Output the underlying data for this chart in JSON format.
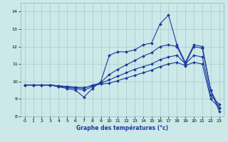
{
  "xlabel": "Graphe des températures (°c)",
  "xlim": [
    -0.5,
    23.5
  ],
  "ylim": [
    8.0,
    14.5
  ],
  "yticks": [
    8,
    9,
    10,
    11,
    12,
    13,
    14
  ],
  "xticks": [
    0,
    1,
    2,
    3,
    4,
    5,
    6,
    7,
    8,
    9,
    10,
    11,
    12,
    13,
    14,
    15,
    16,
    17,
    18,
    19,
    20,
    21,
    22,
    23
  ],
  "bg_color": "#cce8e8",
  "line_color": "#1a3a9c",
  "grid_color": "#aacaca",
  "lines": [
    {
      "x": [
        0,
        1,
        2,
        3,
        4,
        5,
        6,
        7,
        8,
        9,
        10,
        11,
        12,
        13,
        14,
        15,
        16,
        17,
        18,
        19,
        20,
        21,
        22,
        23
      ],
      "y": [
        9.8,
        9.8,
        9.8,
        9.8,
        9.7,
        9.6,
        9.5,
        9.1,
        9.6,
        10.0,
        11.5,
        11.7,
        11.7,
        11.8,
        12.1,
        12.2,
        13.3,
        13.8,
        12.1,
        11.1,
        12.1,
        12.0,
        9.5,
        8.5
      ]
    },
    {
      "x": [
        0,
        1,
        2,
        3,
        4,
        5,
        6,
        7,
        8,
        9,
        10,
        11,
        12,
        13,
        14,
        15,
        16,
        17,
        18,
        19,
        20,
        21,
        22,
        23
      ],
      "y": [
        9.8,
        9.8,
        9.8,
        9.8,
        9.7,
        9.65,
        9.6,
        9.5,
        9.7,
        9.95,
        10.4,
        10.7,
        10.95,
        11.2,
        11.45,
        11.65,
        12.0,
        12.1,
        12.0,
        11.0,
        12.0,
        11.9,
        9.5,
        8.3
      ]
    },
    {
      "x": [
        0,
        1,
        2,
        3,
        4,
        5,
        6,
        7,
        8,
        9,
        10,
        11,
        12,
        13,
        14,
        15,
        16,
        17,
        18,
        19,
        20,
        21,
        22,
        23
      ],
      "y": [
        9.8,
        9.8,
        9.8,
        9.8,
        9.75,
        9.7,
        9.65,
        9.6,
        9.8,
        9.9,
        10.1,
        10.3,
        10.5,
        10.7,
        10.85,
        11.0,
        11.25,
        11.4,
        11.5,
        11.0,
        11.5,
        11.4,
        9.2,
        8.7
      ]
    },
    {
      "x": [
        0,
        1,
        2,
        3,
        4,
        5,
        6,
        7,
        8,
        9,
        10,
        11,
        12,
        13,
        14,
        15,
        16,
        17,
        18,
        19,
        20,
        21,
        22,
        23
      ],
      "y": [
        9.8,
        9.8,
        9.8,
        9.8,
        9.75,
        9.72,
        9.68,
        9.65,
        9.75,
        9.85,
        9.9,
        10.05,
        10.2,
        10.35,
        10.5,
        10.65,
        10.85,
        11.0,
        11.1,
        10.9,
        11.1,
        11.0,
        9.0,
        8.5
      ]
    }
  ]
}
